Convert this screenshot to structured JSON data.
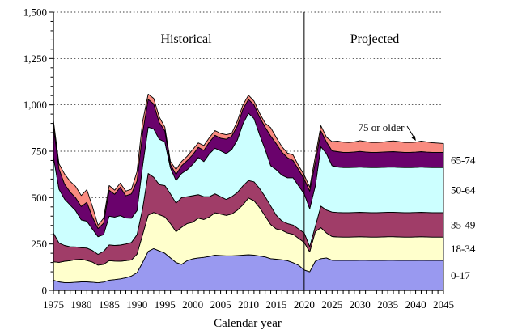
{
  "page": {
    "background": "#FFFFFF"
  },
  "chart_data": {
    "type": "area",
    "stacked": true,
    "title": "",
    "xlabel": "Calendar year",
    "ylabel": "",
    "xlim": [
      1975,
      2045
    ],
    "ylim": [
      0,
      1500
    ],
    "grid": "horizontal dotted every 250",
    "y_tick_step": 250,
    "y_minor_step": 50,
    "x_label_step": 5,
    "x_minor_step": 1,
    "y_tick_labels": [
      "0",
      "250",
      "500",
      "750",
      "1,000",
      "1,250",
      "1,500"
    ],
    "x_tick_labels": [
      "1975",
      "1980",
      "1985",
      "1990",
      "1995",
      "2000",
      "2005",
      "2010",
      "2015",
      "2020",
      "2025",
      "2030",
      "2035",
      "2040",
      "2045"
    ],
    "divider_year": 2020,
    "region_labels": {
      "historical": "Historical",
      "projected": "Projected"
    },
    "annotation_75": "75 or older",
    "band_labels": [
      "65-74",
      "50-64",
      "35-49",
      "18-34",
      "0-17"
    ],
    "axis_color": "#000000",
    "years": [
      1975,
      1976,
      1977,
      1978,
      1979,
      1980,
      1981,
      1982,
      1983,
      1984,
      1985,
      1986,
      1987,
      1988,
      1989,
      1990,
      1991,
      1992,
      1993,
      1994,
      1995,
      1996,
      1997,
      1998,
      1999,
      2000,
      2001,
      2002,
      2003,
      2004,
      2005,
      2006,
      2007,
      2008,
      2009,
      2010,
      2011,
      2012,
      2013,
      2014,
      2015,
      2016,
      2017,
      2018,
      2019,
      2020,
      2021,
      2022,
      2023,
      2024,
      2025,
      2026,
      2027,
      2028,
      2029,
      2030,
      2031,
      2032,
      2033,
      2034,
      2035,
      2036,
      2037,
      2038,
      2039,
      2040,
      2041,
      2042,
      2043,
      2044,
      2045
    ],
    "series": [
      {
        "name": "0-17",
        "color": "#9999F0",
        "values": [
          55,
          46,
          42,
          42,
          44,
          46,
          46,
          44,
          41,
          45,
          55,
          58,
          62,
          68,
          77,
          95,
          150,
          210,
          225,
          213,
          200,
          175,
          150,
          140,
          160,
          170,
          175,
          178,
          183,
          190,
          188,
          186,
          186,
          188,
          190,
          192,
          190,
          185,
          180,
          171,
          168,
          165,
          160,
          149,
          135,
          110,
          100,
          157,
          171,
          175,
          162,
          161,
          161,
          161,
          161,
          162,
          162,
          161,
          161,
          161,
          162,
          162,
          161,
          161,
          161,
          161,
          162,
          161,
          161,
          161,
          161
        ]
      },
      {
        "name": "18-34",
        "color": "#FFFFCC",
        "values": [
          99,
          105,
          115,
          118,
          122,
          122,
          115,
          108,
          95,
          95,
          105,
          100,
          95,
          92,
          87,
          100,
          150,
          195,
          195,
          195,
          196,
          185,
          166,
          200,
          200,
          197,
          214,
          204,
          213,
          228,
          223,
          218,
          225,
          244,
          271,
          306,
          293,
          261,
          220,
          184,
          163,
          159,
          149,
          153,
          145,
          148,
          107,
          159,
          167,
          134,
          128,
          127,
          126,
          126,
          127,
          127,
          126,
          126,
          126,
          127,
          127,
          127,
          127,
          126,
          126,
          127,
          127,
          127,
          126,
          126,
          126
        ]
      },
      {
        "name": "35-49",
        "color": "#A03D68",
        "values": [
          155,
          104,
          85,
          75,
          68,
          62,
          67,
          63,
          58,
          70,
          85,
          84,
          87,
          90,
          94,
          105,
          140,
          225,
          190,
          162,
          169,
          160,
          154,
          160,
          145,
          143,
          127,
          123,
          109,
          102,
          94,
          86,
          94,
          95,
          102,
          94,
          102,
          103,
          105,
          100,
          74,
          50,
          51,
          50,
          51,
          51,
          29,
          29,
          116,
          124,
          132,
          132,
          132,
          132,
          132,
          132,
          132,
          132,
          132,
          132,
          132,
          132,
          132,
          132,
          132,
          132,
          132,
          132,
          132,
          132,
          132
        ]
      },
      {
        "name": "50-64",
        "color": "#CCFFFF",
        "values": [
          410,
          290,
          250,
          225,
          195,
          150,
          145,
          115,
          95,
          90,
          155,
          153,
          159,
          140,
          131,
          130,
          230,
          250,
          260,
          245,
          235,
          140,
          122,
          130,
          145,
          169,
          200,
          189,
          232,
          246,
          247,
          247,
          254,
          283,
          334,
          363,
          341,
          290,
          254,
          217,
          245,
          247,
          247,
          255,
          232,
          211,
          204,
          218,
          320,
          304,
          250,
          245,
          243,
          243,
          243,
          244,
          243,
          243,
          243,
          243,
          243,
          244,
          243,
          243,
          243,
          243,
          244,
          243,
          243,
          243,
          243
        ]
      },
      {
        "name": "65-74",
        "color": "#6A026C",
        "values": [
          163,
          109,
          80,
          70,
          70,
          72,
          102,
          65,
          44,
          62,
          140,
          123,
          153,
          120,
          131,
          160,
          180,
          150,
          135,
          90,
          60,
          18,
          33,
          42,
          50,
          52,
          55,
          61,
          63,
          70,
          68,
          78,
          72,
          76,
          79,
          75,
          74,
          95,
          120,
          160,
          140,
          124,
          108,
          93,
          87,
          80,
          95,
          127,
          86,
          63,
          80,
          83,
          82,
          82,
          83,
          84,
          83,
          82,
          82,
          82,
          83,
          83,
          83,
          82,
          82,
          82,
          83,
          82,
          82,
          82,
          82
        ]
      },
      {
        "name": "75 or older",
        "color": "#F98B80",
        "values": [
          34,
          28,
          55,
          58,
          61,
          59,
          68,
          57,
          18,
          27,
          25,
          22,
          22,
          25,
          25,
          50,
          60,
          28,
          30,
          30,
          20,
          16,
          27,
          23,
          23,
          28,
          24,
          26,
          24,
          25,
          26,
          24,
          15,
          26,
          23,
          22,
          21,
          21,
          22,
          45,
          34,
          30,
          25,
          30,
          22,
          22,
          21,
          32,
          28,
          26,
          50,
          57,
          55,
          53,
          54,
          58,
          56,
          53,
          53,
          54,
          56,
          58,
          56,
          53,
          53,
          54,
          57,
          55,
          52,
          50,
          48
        ]
      }
    ]
  }
}
